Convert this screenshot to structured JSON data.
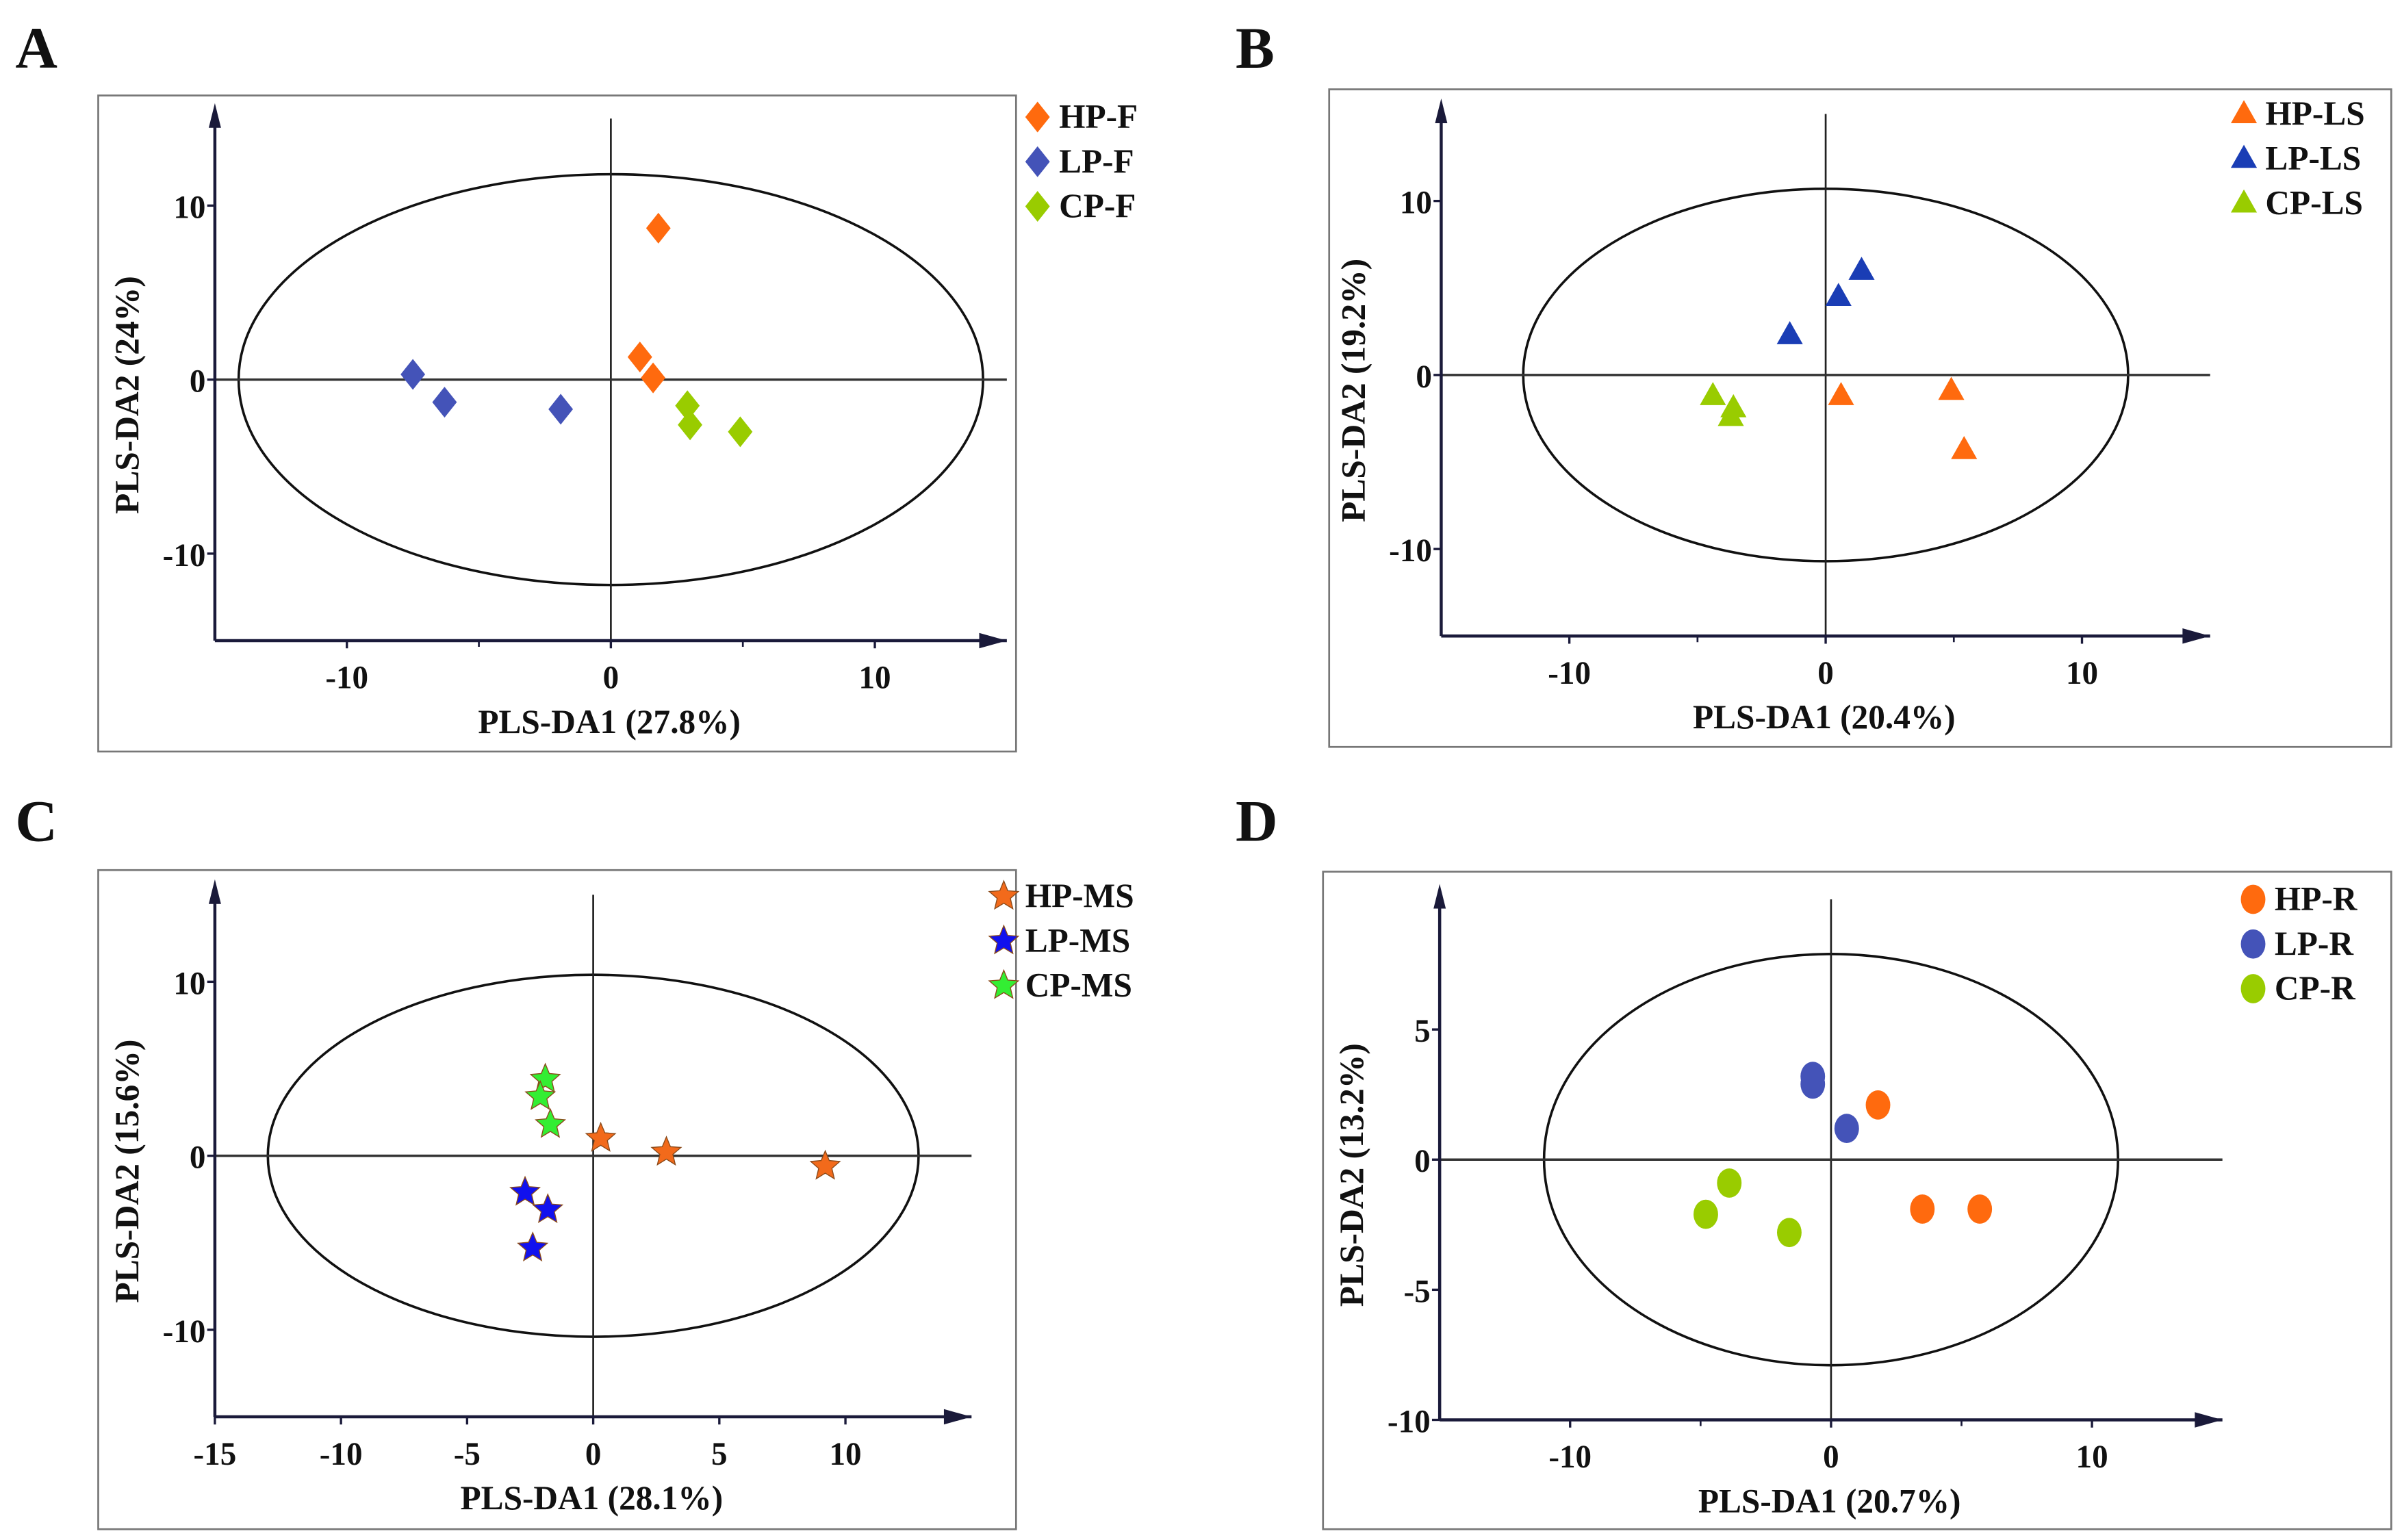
{
  "chart_data": [
    {
      "panel": "A",
      "type": "scatter",
      "xlabel": "PLS-DA1 (27.8%)",
      "ylabel": "PLS-DA2 (24%)",
      "xlim": [
        -15,
        15
      ],
      "ylim": [
        -15,
        15
      ],
      "xticks": [
        -10,
        0,
        10
      ],
      "xminor": [
        -5,
        5
      ],
      "yticks": [
        -10,
        0,
        10
      ],
      "ellipse": {
        "rx": 14.1,
        "ry": 11.8
      },
      "legend_position": "top-right",
      "marker": "diamond",
      "series": [
        {
          "name": "HP-F",
          "color": "#ff6a0e",
          "points": [
            [
              1.8,
              8.7
            ],
            [
              1.1,
              1.3
            ],
            [
              1.6,
              0.1
            ]
          ]
        },
        {
          "name": "LP-F",
          "color": "#4453b8",
          "points": [
            [
              -7.5,
              0.3
            ],
            [
              -6.3,
              -1.3
            ],
            [
              -1.9,
              -1.7
            ]
          ]
        },
        {
          "name": "CP-F",
          "color": "#99cc00",
          "points": [
            [
              2.9,
              -1.5
            ],
            [
              3.0,
              -2.6
            ],
            [
              4.9,
              -3.0
            ]
          ]
        }
      ]
    },
    {
      "panel": "B",
      "type": "scatter",
      "xlabel": "PLS-DA1 (20.4%)",
      "ylabel": "PLS-DA2 (19.2%)",
      "xlim": [
        -15,
        15
      ],
      "ylim": [
        -15,
        15
      ],
      "xticks": [
        -10,
        0,
        10
      ],
      "xminor": [
        -5,
        5
      ],
      "yticks": [
        -10,
        0,
        10
      ],
      "ellipse": {
        "rx": 11.8,
        "ry": 10.7
      },
      "legend_position": "top-right",
      "marker": "triangle",
      "series": [
        {
          "name": "HP-LS",
          "color": "#ff6a0e",
          "points": [
            [
              0.6,
              -1.2
            ],
            [
              4.9,
              -0.9
            ],
            [
              5.4,
              -4.3
            ]
          ]
        },
        {
          "name": "LP-LS",
          "color": "#1a3db5",
          "points": [
            [
              -1.4,
              2.3
            ],
            [
              0.5,
              4.5
            ],
            [
              1.4,
              6.0
            ]
          ]
        },
        {
          "name": "CP-LS",
          "color": "#99cc00",
          "points": [
            [
              -4.4,
              -1.2
            ],
            [
              -3.6,
              -1.9
            ],
            [
              -3.7,
              -2.4
            ]
          ]
        }
      ]
    },
    {
      "panel": "C",
      "type": "scatter",
      "xlabel": "PLS-DA1 (28.1%)",
      "ylabel": "PLS-DA2 (15.6%)",
      "xlim": [
        -15,
        15
      ],
      "ylim": [
        -15,
        15
      ],
      "xticks": [
        -15,
        -10,
        -5,
        0,
        5,
        10
      ],
      "xminor": [],
      "yticks": [
        -10,
        0,
        10
      ],
      "ellipse": {
        "rx": 12.9,
        "ry": 10.4
      },
      "legend_position": "top-right",
      "marker": "star",
      "series": [
        {
          "name": "HP-MS",
          "color": "#f26a1b",
          "points": [
            [
              0.3,
              1.0
            ],
            [
              2.9,
              0.2
            ],
            [
              9.2,
              -0.6
            ]
          ]
        },
        {
          "name": "LP-MS",
          "color": "#1111ee",
          "points": [
            [
              -2.7,
              -2.1
            ],
            [
              -1.8,
              -3.1
            ],
            [
              -2.4,
              -5.3
            ]
          ]
        },
        {
          "name": "CP-MS",
          "color": "#33ee33",
          "points": [
            [
              -1.9,
              4.4
            ],
            [
              -2.1,
              3.4
            ],
            [
              -1.7,
              1.8
            ]
          ]
        }
      ]
    },
    {
      "panel": "D",
      "type": "scatter",
      "xlabel": "PLS-DA1 (20.7%)",
      "ylabel": "PLS-DA2 (13.2%)",
      "xlim": [
        -15,
        15
      ],
      "ylim": [
        -10,
        10
      ],
      "xticks": [
        -10,
        0,
        10
      ],
      "xminor": [
        -5,
        5
      ],
      "yticks": [
        -10,
        -5,
        0,
        5
      ],
      "ellipse": {
        "rx": 11.0,
        "ry": 7.9
      },
      "legend_position": "top-right",
      "marker": "circle",
      "series": [
        {
          "name": "HP-R",
          "color": "#ff6a0e",
          "points": [
            [
              1.8,
              2.1
            ],
            [
              3.5,
              -1.9
            ],
            [
              5.7,
              -1.9
            ]
          ]
        },
        {
          "name": "LP-R",
          "color": "#4453b8",
          "points": [
            [
              -0.7,
              3.2
            ],
            [
              -0.7,
              2.9
            ],
            [
              0.6,
              1.2
            ]
          ]
        },
        {
          "name": "CP-R",
          "color": "#99cc00",
          "points": [
            [
              -4.8,
              -2.1
            ],
            [
              -3.9,
              -0.9
            ],
            [
              -1.6,
              -2.8
            ]
          ]
        }
      ]
    }
  ]
}
